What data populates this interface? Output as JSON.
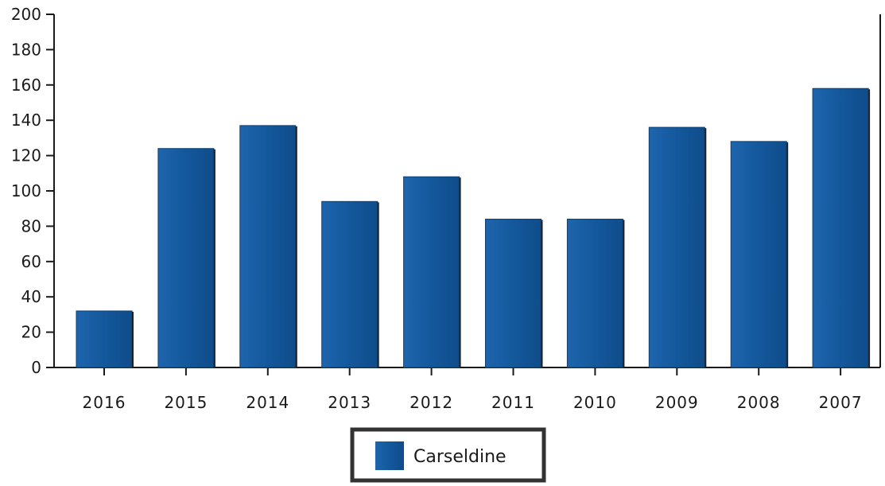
{
  "chart_data": {
    "type": "bar",
    "categories": [
      "2016",
      "2015",
      "2014",
      "2013",
      "2012",
      "2011",
      "2010",
      "2009",
      "2008",
      "2007"
    ],
    "series": [
      {
        "name": "Carseldine",
        "values": [
          32,
          124,
          137,
          94,
          108,
          84,
          84,
          136,
          128,
          158
        ]
      }
    ],
    "title": "",
    "xlabel": "",
    "ylabel": "",
    "ylim": [
      0,
      200
    ],
    "yticks": [
      0,
      20,
      40,
      60,
      80,
      100,
      120,
      140,
      160,
      180,
      200
    ],
    "grid": false,
    "legend": {
      "placement": "bottom-center",
      "entries": [
        "Carseldine"
      ]
    },
    "colors": {
      "bar": "#14589c",
      "axis": "#1a1a1a",
      "legend_border": "#333333"
    }
  }
}
